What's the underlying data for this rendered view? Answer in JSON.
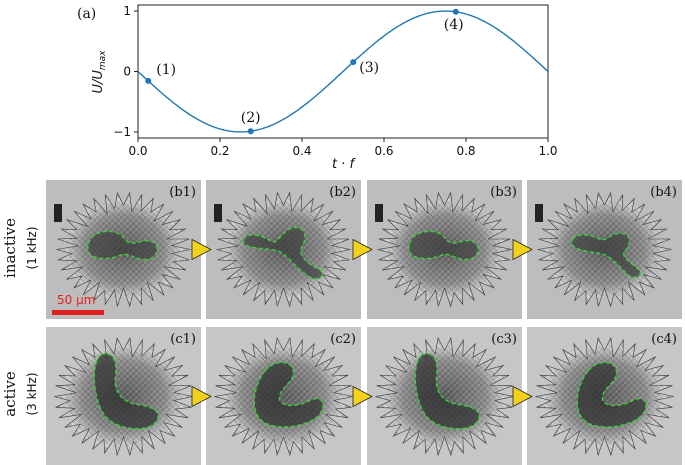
{
  "panel_a_label": "(a)",
  "chart_data": {
    "type": "line",
    "xlabel": "t · f",
    "ylabel": "U/U",
    "ylabel_sub": "max",
    "xlim": [
      0.0,
      1.0
    ],
    "ylim": [
      -1.1,
      1.1
    ],
    "x_ticks": [
      0.0,
      0.2,
      0.4,
      0.6,
      0.8,
      1.0
    ],
    "x_tick_labels": [
      "0.0",
      "0.2",
      "0.4",
      "0.6",
      "0.8",
      "1.0"
    ],
    "y_ticks": [
      -1,
      0,
      1
    ],
    "y_tick_labels": [
      "−1",
      "0",
      "1"
    ],
    "curve": {
      "function": "-sin(2*pi*x)",
      "x_start": 0.0,
      "x_end": 1.0,
      "color": "#1f77b4"
    },
    "markers": [
      {
        "label": "(1)",
        "x": 0.025,
        "y": -0.156
      },
      {
        "label": "(2)",
        "x": 0.275,
        "y": -0.988
      },
      {
        "label": "(3)",
        "x": 0.525,
        "y": 0.156
      },
      {
        "label": "(4)",
        "x": 0.775,
        "y": 0.988
      }
    ]
  },
  "rows": [
    {
      "label": "inactive",
      "sublabel": "(1 kHz)",
      "panels": [
        "(b1)",
        "(b2)",
        "(b3)",
        "(b4)"
      ]
    },
    {
      "label": "active",
      "sublabel": "(3 kHz)",
      "panels": [
        "(c1)",
        "(c2)",
        "(c3)",
        "(c4)"
      ]
    }
  ],
  "scale_bar_label": "50 μm",
  "colors": {
    "curve": "#1f77b4",
    "outline": "#39d339",
    "arrow": "#f2d21b",
    "scale": "#e02020"
  }
}
